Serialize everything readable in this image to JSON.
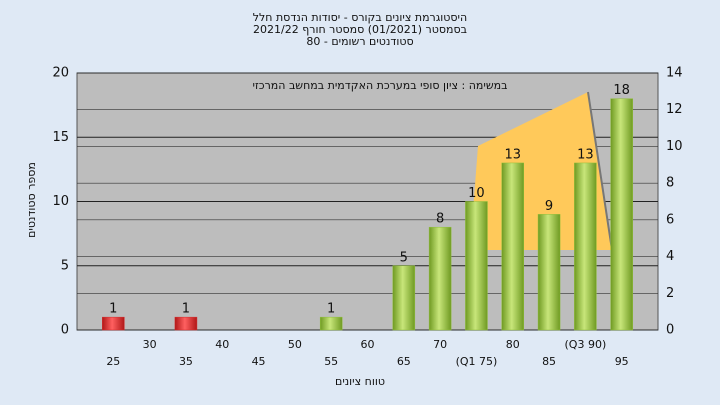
{
  "chart_data": {
    "type": "bar",
    "title": [
      "היסטוגרמת ציונים בקורס - יסודות הנדסת חלל",
      "בסמסטר (01/2021) סמסטר חורף 2021/22",
      "סטודנטים רשומים - 80"
    ],
    "annotation": "במשימה : ציון סופי במערכת האקדמית במחשב המרכזי",
    "x_label": "טווח ציונים",
    "y_label": "מספר סטודנטים",
    "categories": [
      "25",
      "30",
      "35",
      "40",
      "45",
      "50",
      "55",
      "60",
      "65",
      "70",
      "(Q1 75)",
      "80",
      "85",
      "(Q3 90)",
      "95"
    ],
    "values": [
      1,
      null,
      1,
      null,
      null,
      null,
      1,
      null,
      5,
      8,
      10,
      13,
      9,
      13,
      18
    ],
    "colors": [
      "#d42a2a",
      null,
      "#d42a2a",
      null,
      null,
      null,
      "#8fbf3a",
      null,
      "#8fbf3a",
      "#8fbf3a",
      "#8fbf3a",
      "#8fbf3a",
      "#8fbf3a",
      "#8fbf3a",
      "#8fbf3a"
    ],
    "ylim": [
      0,
      20
    ],
    "yticks": [
      0,
      5,
      10,
      15,
      20
    ],
    "y2lim": [
      0,
      14
    ],
    "y2ticks": [
      0,
      2,
      4,
      6,
      8,
      10,
      12,
      14
    ],
    "grid": true
  }
}
